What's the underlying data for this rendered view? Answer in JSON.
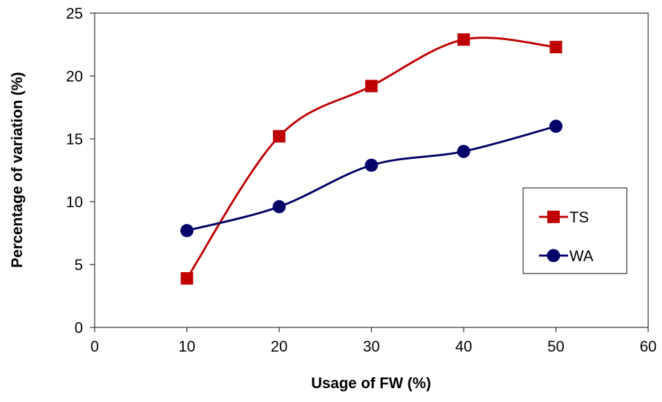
{
  "chart_data": {
    "type": "line",
    "title": "",
    "xlabel": "Usage of FW (%)",
    "ylabel": "Percentage of variation (%)",
    "xlim": [
      0,
      60
    ],
    "ylim": [
      0,
      25
    ],
    "xticks": [
      0,
      10,
      20,
      30,
      40,
      50,
      60
    ],
    "yticks": [
      0,
      5,
      10,
      15,
      20,
      25
    ],
    "grid": false,
    "smooth": true,
    "legend_position": "right",
    "x": [
      10,
      20,
      30,
      40,
      50
    ],
    "series": [
      {
        "name": "TS",
        "values": [
          3.9,
          15.2,
          19.2,
          22.9,
          22.3
        ],
        "color": "#c00000",
        "marker": "square"
      },
      {
        "name": "WA",
        "values": [
          7.7,
          9.6,
          12.9,
          14.0,
          16.0
        ],
        "color": "#000066",
        "marker": "circle"
      }
    ]
  }
}
